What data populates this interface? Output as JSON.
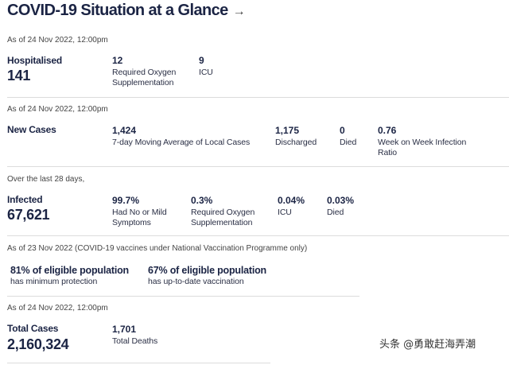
{
  "title": "COVID-19 Situation at a Glance",
  "title_arrow": "→",
  "hospital": {
    "asof": "As of 24 Nov 2022, 12:00pm",
    "label": "Hospitalised",
    "value": "141",
    "stats": [
      {
        "value": "12",
        "label": "Required Oxygen Supplementation"
      },
      {
        "value": "9",
        "label": "ICU"
      }
    ]
  },
  "new_cases": {
    "asof": "As of 24 Nov 2022, 12:00pm",
    "label": "New Cases",
    "stats": [
      {
        "value": "1,424",
        "label": "7-day Moving Average of Local Cases"
      },
      {
        "value": "1,175",
        "label": "Discharged"
      },
      {
        "value": "0",
        "label": "Died"
      },
      {
        "value": "0.76",
        "label": "Week on Week Infection Ratio"
      }
    ]
  },
  "infected": {
    "asof": "Over the last 28 days,",
    "label": "Infected",
    "value": "67,621",
    "stats": [
      {
        "value": "99.7%",
        "label": "Had No or Mild Symptoms"
      },
      {
        "value": "0.3%",
        "label": "Required Oxygen Supplementation"
      },
      {
        "value": "0.04%",
        "label": "ICU"
      },
      {
        "value": "0.03%",
        "label": "Died"
      }
    ]
  },
  "vaccination": {
    "asof": "As of 23 Nov 2022 (COVID-19 vaccines under National Vaccination Programme only)",
    "stats": [
      {
        "value": "81% of eligible population",
        "label": "has minimum protection"
      },
      {
        "value": "67% of eligible population",
        "label": "has up-to-date vaccination"
      }
    ]
  },
  "totals": {
    "asof": "As of 24 Nov 2022, 12:00pm",
    "label": "Total Cases",
    "value": "2,160,324",
    "stats": [
      {
        "value": "1,701",
        "label": "Total Deaths"
      }
    ]
  },
  "watermark": "头条 @勇敢赶海弄潮"
}
